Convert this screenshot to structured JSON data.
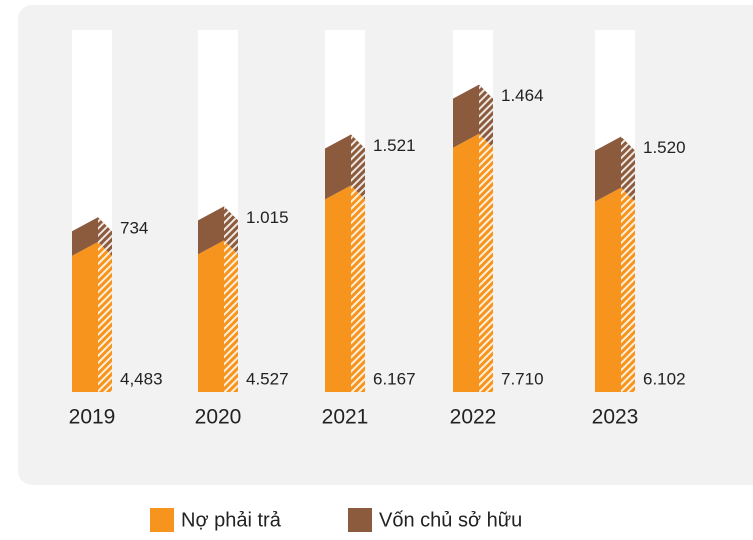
{
  "chart_data": {
    "type": "stacked_bar",
    "categories": [
      "2019",
      "2020",
      "2021",
      "2022",
      "2023"
    ],
    "series": [
      {
        "name": "Nợ phải trả",
        "color": "#f7941d",
        "values": [
          4483,
          4527,
          6167,
          7710,
          6102
        ],
        "value_labels": [
          "4,483",
          "4.527",
          "6.167",
          "7.710",
          "6.102"
        ]
      },
      {
        "name": "Vốn chủ sở hữu",
        "color": "#8c5b3e",
        "values": [
          734,
          1015,
          1521,
          1464,
          1520
        ],
        "value_labels": [
          "734",
          "1.015",
          "1.521",
          "1.464",
          "1.520"
        ]
      }
    ],
    "ylim": [
      0,
      10000
    ]
  }
}
